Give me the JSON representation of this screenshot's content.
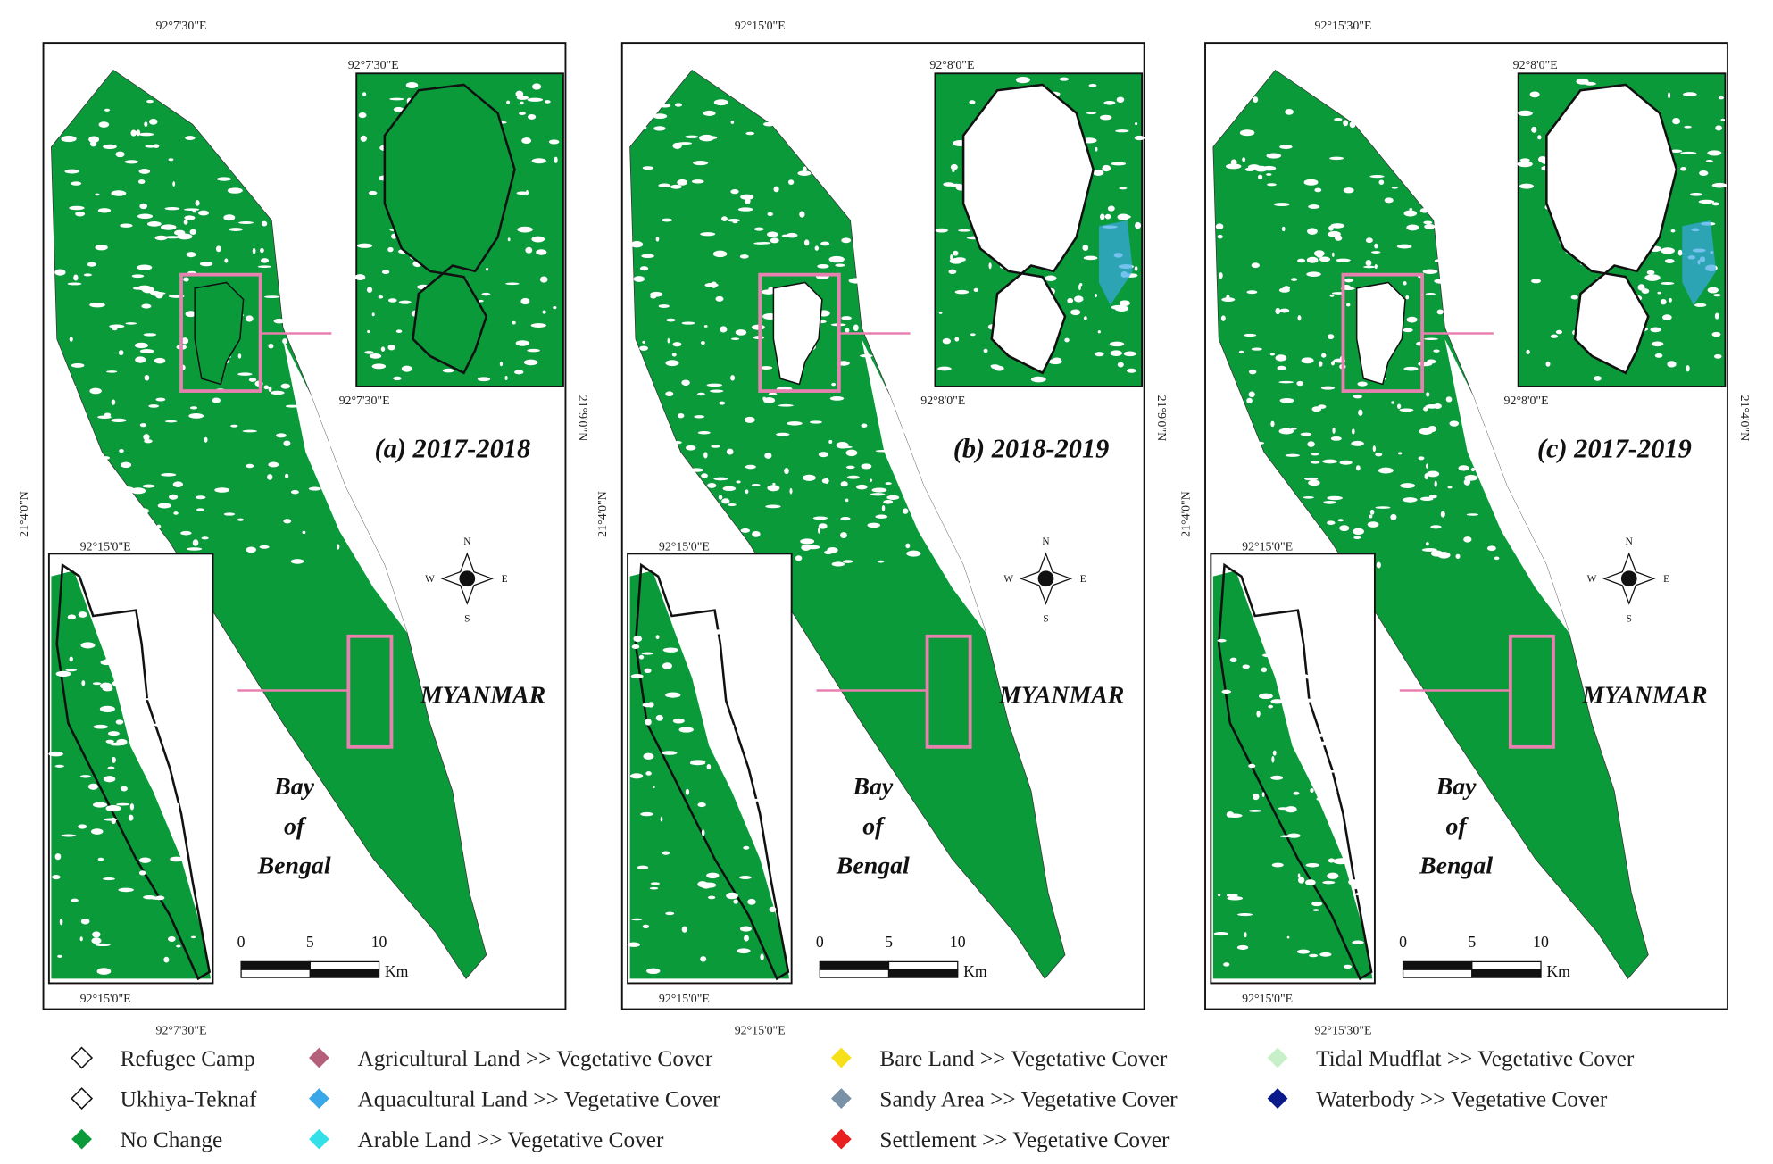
{
  "panels": [
    {
      "label": "(a) 2017-2018",
      "top_coord": "92°7'30\"E",
      "bottom_coord": "92°7'30\"E",
      "left_coord": "21°4'0\"N",
      "right_coord": "21°9'0\"N",
      "inset_top": {
        "top": "92°7'30\"E",
        "bottom": "92°7'30\"E"
      },
      "inset_bottom": {
        "top": "92°15'0\"E",
        "bottom": "92°15'0\"E"
      }
    },
    {
      "label": "(b) 2018-2019",
      "top_coord": "92°15'0\"E",
      "bottom_coord": "92°15'0\"E",
      "left_coord": "21°4'0\"N",
      "right_coord": "21°9'0\"N",
      "inset_top": {
        "top": "92°8'0\"E",
        "bottom": "92°8'0\"E"
      },
      "inset_bottom": {
        "top": "92°15'0\"E",
        "bottom": "92°15'0\"E"
      }
    },
    {
      "label": "(c) 2017-2019",
      "top_coord": "92°15'30\"E",
      "bottom_coord": "92°15'30\"E",
      "left_coord": "21°4'0\"N",
      "right_coord": "21°4'0\"N",
      "inset_top": {
        "top": "92°8'0\"E",
        "bottom": "92°8'0\"E"
      },
      "inset_bottom": {
        "top": "92°15'0\"E",
        "bottom": "92°15'0\"E"
      }
    }
  ],
  "places": {
    "country": "MYANMAR",
    "bay": [
      "Bay",
      "of",
      "Bengal"
    ]
  },
  "compass": {
    "n": "N",
    "e": "E",
    "s": "S",
    "w": "W"
  },
  "scale_bar": {
    "ticks": [
      "0",
      "5",
      "10"
    ],
    "unit": "Km"
  },
  "legend": [
    {
      "name": "Refugee Camp",
      "color": "#ffffff"
    },
    {
      "name": "Ukhiya-Teknaf",
      "color": "#ffffff"
    },
    {
      "name": "No Change",
      "color": "#0a9a3a"
    },
    {
      "name": "Agricultural Land >> Vegetative Cover",
      "color": "#b5607a"
    },
    {
      "name": "Aquacultural Land >> Vegetative Cover",
      "color": "#3aa8e8"
    },
    {
      "name": "Arable Land >> Vegetative Cover",
      "color": "#33e0e8"
    },
    {
      "name": "Bare Land >> Vegetative Cover",
      "color": "#f5e01a"
    },
    {
      "name": "Sandy Area >> Vegetative Cover",
      "color": "#7a92a8"
    },
    {
      "name": "Settlement >> Vegetative Cover",
      "color": "#e82020"
    },
    {
      "name": "Tidal Mudflat >> Vegetative Cover",
      "color": "#c8f0c8"
    },
    {
      "name": "Waterbody >> Vegetative Cover",
      "color": "#0a1a8a"
    }
  ]
}
